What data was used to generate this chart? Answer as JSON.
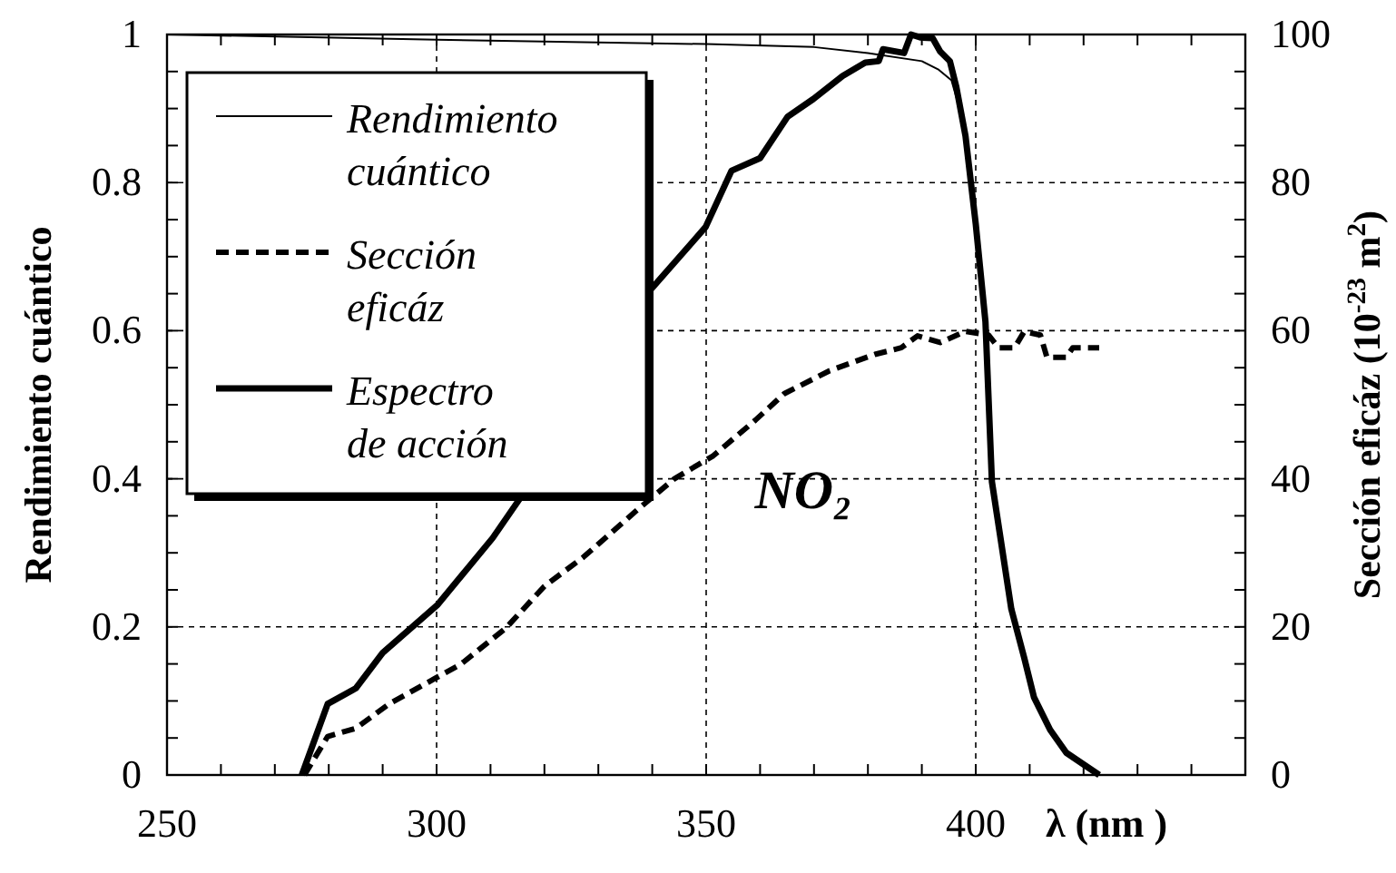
{
  "chart_data": {
    "type": "line",
    "xlabel": "λ (nm )",
    "ylabel": "Rendimiento cuántico",
    "y2label": "Sección eficáz (10$^{-23}$ m$^{2}$)",
    "annotations": [
      "NO₂"
    ],
    "xlim": [
      250,
      450
    ],
    "ylim": [
      0,
      1
    ],
    "y2lim": [
      0,
      100
    ],
    "xticks": [
      250,
      {
        "value": 260,
        "label": null
      },
      {
        "value": 270,
        "label": null
      },
      {
        "value": 280,
        "label": null
      },
      {
        "value": 290,
        "label": null
      },
      300,
      {
        "value": 310,
        "label": null
      },
      {
        "value": 320,
        "label": null
      },
      {
        "value": 330,
        "label": null
      },
      {
        "value": 340,
        "label": null
      },
      350,
      {
        "value": 360,
        "label": null
      },
      {
        "value": 370,
        "label": null
      },
      {
        "value": 380,
        "label": null
      },
      {
        "value": 390,
        "label": null
      },
      400,
      {
        "value": 410,
        "label": null
      },
      {
        "value": 420,
        "label": null
      },
      {
        "value": 430,
        "label": null
      },
      {
        "value": 440,
        "label": null
      },
      {
        "value": 450,
        "label": null
      }
    ],
    "yticks": [
      0,
      {
        "value": 0.05,
        "label": null
      },
      {
        "value": 0.1,
        "label": null
      },
      {
        "value": 0.15,
        "label": null
      },
      0.2,
      {
        "value": 0.25,
        "label": null
      },
      {
        "value": 0.3,
        "label": null
      },
      {
        "value": 0.35,
        "label": null
      },
      0.4,
      {
        "value": 0.45,
        "label": null
      },
      {
        "value": 0.5,
        "label": null
      },
      {
        "value": 0.55,
        "label": null
      },
      0.6,
      {
        "value": 0.65,
        "label": null
      },
      {
        "value": 0.7,
        "label": null
      },
      {
        "value": 0.75,
        "label": null
      },
      0.8,
      {
        "value": 0.85,
        "label": null
      },
      {
        "value": 0.9,
        "label": null
      },
      {
        "value": 0.95,
        "label": null
      },
      1
    ],
    "y2ticks": [
      0,
      {
        "value": 5,
        "label": null
      },
      {
        "value": 10,
        "label": null
      },
      {
        "value": 15,
        "label": null
      },
      20,
      {
        "value": 25,
        "label": null
      },
      {
        "value": 30,
        "label": null
      },
      {
        "value": 35,
        "label": null
      },
      40,
      {
        "value": 45,
        "label": null
      },
      {
        "value": 50,
        "label": null
      },
      {
        "value": 55,
        "label": null
      },
      60,
      {
        "value": 65,
        "label": null
      },
      {
        "value": 70,
        "label": null
      },
      {
        "value": 75,
        "label": null
      },
      80,
      {
        "value": 85,
        "label": null
      },
      {
        "value": 90,
        "label": null
      },
      {
        "value": 95,
        "label": null
      },
      100
    ],
    "grid": true,
    "legend": "top left",
    "series": [
      {
        "name": "Rendimiento cuántico",
        "color": "#000000",
        "line_style": "solid",
        "x": [
          250,
          300,
          350,
          370,
          380,
          390,
          393,
          395.5,
          397
        ],
        "values": [
          1.0,
          0.993,
          0.987,
          0.983,
          0.975,
          0.964,
          0.953,
          0.938,
          0.9
        ]
      },
      {
        "name": "Sección eficáz",
        "color": "#000000",
        "line_style": "dashed",
        "axis": "y2",
        "x": [
          275.5,
          279.8,
          285,
          291.2,
          299.6,
          304.4,
          312.8,
          320,
          327.2,
          336.9,
          344.1,
          351.3,
          359.1,
          364.5,
          372.9,
          381.3,
          386.2,
          389.2,
          393.4,
          398.1,
          402.4,
          404.2,
          407.2,
          409,
          412,
          413.2,
          416.8,
          418,
          422.9
        ],
        "values": [
          0,
          5.2,
          6.3,
          9.6,
          13,
          14.9,
          19.8,
          25.5,
          29.4,
          35.6,
          40,
          43.1,
          47.9,
          51.5,
          54.6,
          56.8,
          57.7,
          59.3,
          58.4,
          59.9,
          59.4,
          57.7,
          57.7,
          59.9,
          59.4,
          56.4,
          56.4,
          57.7,
          57.7
        ]
      },
      {
        "name": "Espectro de acción",
        "color": "#000000",
        "line_style": "solid",
        "x": [
          275,
          279.8,
          285,
          290,
          300.2,
          310.4,
          315.8,
          338.7,
          349.9,
          354.7,
          360,
          365.1,
          369.9,
          375.3,
          379.5,
          382,
          382.8,
          386.7,
          388,
          389.7,
          392,
          393.4,
          395.2,
          396.4,
          398.1,
          400,
          401.8,
          403,
          406.6,
          409,
          410.8,
          413.8,
          416.8,
          422.9
        ],
        "values": [
          0,
          0.096,
          0.117,
          0.165,
          0.23,
          0.32,
          0.377,
          0.647,
          0.74,
          0.816,
          0.833,
          0.889,
          0.913,
          0.944,
          0.962,
          0.964,
          0.98,
          0.975,
          1.0,
          0.996,
          0.995,
          0.977,
          0.964,
          0.929,
          0.863,
          0.744,
          0.612,
          0.396,
          0.224,
          0.158,
          0.105,
          0.061,
          0.03,
          0
        ]
      }
    ]
  }
}
